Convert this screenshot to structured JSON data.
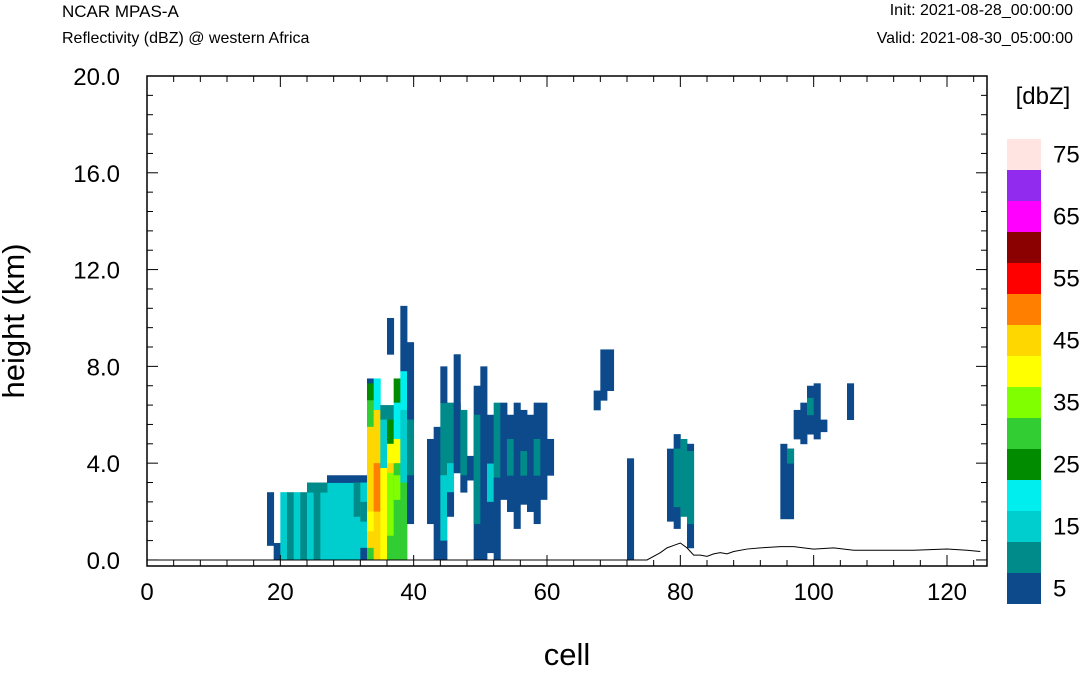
{
  "header": {
    "model": "NCAR MPAS-A",
    "field": "Reflectivity (dBZ) @ western Africa",
    "init": "Init: 2021-08-28_00:00:00",
    "valid": "Valid: 2021-08-30_05:00:00"
  },
  "colors": {
    "levels": [
      "#0d4a8c",
      "#008b8b",
      "#00cdcd",
      "#00eeee",
      "#008b00",
      "#32cd32",
      "#7fff00",
      "#ffff00",
      "#ffd700",
      "#ff7f00",
      "#ff0000",
      "#8b0000",
      "#ff00ff",
      "#912cee",
      "#ffe4e1"
    ]
  },
  "chart_data": {
    "type": "heatmap",
    "xlabel": "cell",
    "ylabel": "height (km)",
    "xlim": [
      0,
      126
    ],
    "ylim": [
      -0.25,
      20
    ],
    "xticks": [
      0,
      20,
      40,
      60,
      80,
      100,
      120
    ],
    "xtick_labels": [
      "0",
      "20",
      "40",
      "60",
      "80",
      "100",
      "120"
    ],
    "yticks": [
      0,
      4,
      8,
      12,
      16,
      20
    ],
    "ytick_labels": [
      "0.0",
      "4.0",
      "8.0",
      "12.0",
      "16.0",
      "20.0"
    ],
    "colorbar": {
      "title": "[dbZ]",
      "levels": [
        5,
        10,
        15,
        20,
        25,
        30,
        35,
        40,
        45,
        50,
        55,
        60,
        65,
        70,
        75
      ],
      "labels": [
        "5",
        "15",
        "25",
        "35",
        "45",
        "55",
        "65",
        "75"
      ]
    },
    "cells": [
      [
        18,
        19,
        0.6,
        2.8,
        5
      ],
      [
        19,
        20,
        0,
        0.7,
        5
      ],
      [
        20,
        21,
        0,
        2.8,
        15
      ],
      [
        21,
        22,
        0,
        2.8,
        10
      ],
      [
        22,
        23,
        0,
        2.8,
        15
      ],
      [
        23,
        24,
        0,
        2.8,
        10
      ],
      [
        24,
        25,
        0,
        3.0,
        15
      ],
      [
        25,
        26,
        0,
        2.8,
        10
      ],
      [
        26,
        27,
        0,
        3.0,
        15
      ],
      [
        27,
        28,
        0,
        3.2,
        15
      ],
      [
        28,
        29,
        0,
        3.2,
        15
      ],
      [
        29,
        30,
        0,
        3.2,
        15
      ],
      [
        30,
        31,
        0,
        3.2,
        15
      ],
      [
        31,
        32,
        0,
        3.2,
        15
      ],
      [
        24,
        27,
        2.8,
        3.2,
        10
      ],
      [
        27,
        33,
        3.2,
        3.5,
        5
      ],
      [
        31,
        32,
        1.8,
        3.2,
        10
      ],
      [
        32,
        33,
        0.5,
        3.2,
        15
      ],
      [
        32,
        33,
        1.6,
        2.4,
        10
      ],
      [
        32,
        33,
        0,
        0.5,
        5
      ],
      [
        33,
        34,
        5.0,
        7.5,
        5
      ],
      [
        33,
        34,
        6.6,
        7.3,
        25
      ],
      [
        33,
        34,
        5.5,
        6.6,
        30
      ],
      [
        33,
        34,
        3.5,
        5.5,
        45
      ],
      [
        33,
        34,
        0.5,
        3.5,
        45
      ],
      [
        33,
        34,
        1.2,
        2.0,
        40
      ],
      [
        33,
        34,
        0,
        0.5,
        30
      ],
      [
        34,
        35,
        6.2,
        7.5,
        20
      ],
      [
        34,
        35,
        4.0,
        6.2,
        45
      ],
      [
        34,
        35,
        2.0,
        4.0,
        50
      ],
      [
        34,
        35,
        0,
        2.0,
        45
      ],
      [
        35,
        36,
        5.8,
        6.4,
        10
      ],
      [
        35,
        36,
        3.8,
        5.8,
        15
      ],
      [
        35,
        36,
        0,
        3.8,
        40
      ],
      [
        36,
        37,
        5.8,
        6.4,
        10
      ],
      [
        36,
        37,
        4.8,
        5.8,
        25
      ],
      [
        36,
        37,
        4.0,
        4.8,
        40
      ],
      [
        36,
        37,
        3.6,
        4.0,
        45
      ],
      [
        36,
        37,
        0,
        3.6,
        35
      ],
      [
        36,
        37,
        0,
        1.0,
        30
      ],
      [
        37,
        38,
        6.5,
        7.5,
        25
      ],
      [
        37,
        38,
        5.0,
        6.5,
        20
      ],
      [
        37,
        38,
        4.0,
        5.0,
        40
      ],
      [
        37,
        38,
        0,
        4.0,
        30
      ],
      [
        37,
        38,
        2.5,
        3.5,
        35
      ],
      [
        38,
        39,
        7.8,
        10.5,
        5
      ],
      [
        38,
        39,
        6.2,
        7.8,
        20
      ],
      [
        38,
        39,
        3.2,
        6.2,
        15
      ],
      [
        38,
        39,
        0,
        3.2,
        30
      ],
      [
        39,
        40,
        5.8,
        9.0,
        5
      ],
      [
        39,
        40,
        3.5,
        5.8,
        10
      ],
      [
        39,
        40,
        1.5,
        3.5,
        5
      ],
      [
        36,
        37,
        8.5,
        10.0,
        5
      ],
      [
        42,
        43,
        1.5,
        5.0,
        5
      ],
      [
        43,
        44,
        0,
        1.5,
        5
      ],
      [
        43,
        44,
        1.5,
        5.5,
        5
      ],
      [
        44,
        45,
        3.5,
        6.5,
        10
      ],
      [
        44,
        45,
        0.8,
        3.5,
        15
      ],
      [
        44,
        45,
        0,
        0.8,
        5
      ],
      [
        44,
        45,
        6.5,
        8.0,
        5
      ],
      [
        45,
        46,
        4.0,
        6.5,
        10
      ],
      [
        45,
        46,
        2.8,
        4.0,
        15
      ],
      [
        45,
        46,
        1.8,
        2.8,
        5
      ],
      [
        46,
        47,
        3.6,
        6.5,
        5
      ],
      [
        46,
        47,
        6.2,
        8.5,
        5
      ],
      [
        47,
        48,
        3.5,
        6.2,
        10
      ],
      [
        47,
        48,
        2.8,
        3.5,
        5
      ],
      [
        48,
        49,
        3.3,
        4.3,
        5
      ],
      [
        49,
        50,
        0,
        7.2,
        5
      ],
      [
        49,
        50,
        1.5,
        6.0,
        10
      ],
      [
        50,
        51,
        4.0,
        8.0,
        5
      ],
      [
        50,
        51,
        2.0,
        4.0,
        5
      ],
      [
        50,
        51,
        0,
        2.0,
        5
      ],
      [
        51,
        52,
        2.4,
        4.0,
        15
      ],
      [
        51,
        52,
        0.3,
        2.4,
        5
      ],
      [
        51,
        52,
        4.0,
        6.0,
        5
      ],
      [
        52,
        53,
        3.4,
        6.5,
        10
      ],
      [
        52,
        53,
        0,
        3.4,
        5
      ],
      [
        53,
        54,
        2.5,
        6.5,
        5
      ],
      [
        54,
        55,
        2.0,
        6.0,
        5
      ],
      [
        54,
        55,
        3.5,
        5.0,
        10
      ],
      [
        55,
        56,
        1.3,
        6.5,
        5
      ],
      [
        56,
        57,
        2.3,
        6.2,
        5
      ],
      [
        56,
        57,
        3.5,
        4.5,
        10
      ],
      [
        57,
        58,
        2.0,
        6.0,
        5
      ],
      [
        58,
        59,
        1.5,
        6.5,
        5
      ],
      [
        58,
        59,
        3.5,
        5.0,
        10
      ],
      [
        59,
        60,
        2.5,
        6.5,
        5
      ],
      [
        60,
        61,
        3.5,
        5.0,
        5
      ],
      [
        67,
        68,
        6.2,
        7.0,
        5
      ],
      [
        68,
        69,
        6.6,
        8.7,
        5
      ],
      [
        69,
        70,
        7.0,
        8.7,
        5
      ],
      [
        72,
        73,
        0,
        4.2,
        5
      ],
      [
        78,
        79,
        1.6,
        4.6,
        5
      ],
      [
        79,
        80,
        1.3,
        5.2,
        5
      ],
      [
        79,
        80,
        2.2,
        4.6,
        10
      ],
      [
        80,
        81,
        1.8,
        5.0,
        10
      ],
      [
        81,
        82,
        0.5,
        4.8,
        5
      ],
      [
        81,
        82,
        1.5,
        4.5,
        10
      ],
      [
        95,
        96,
        1.7,
        4.8,
        5
      ],
      [
        96,
        97,
        1.7,
        4.6,
        5
      ],
      [
        96,
        97,
        4.0,
        4.6,
        10
      ],
      [
        97,
        98,
        5.0,
        6.2,
        5
      ],
      [
        98,
        99,
        4.8,
        6.5,
        5
      ],
      [
        99,
        100,
        5.2,
        7.2,
        5
      ],
      [
        99,
        100,
        6.0,
        6.7,
        10
      ],
      [
        100,
        101,
        5.0,
        7.3,
        5
      ],
      [
        101,
        102,
        5.3,
        5.8,
        5
      ],
      [
        105,
        106,
        5.8,
        7.3,
        5
      ]
    ],
    "terrain": [
      [
        0,
        0
      ],
      [
        75,
        0
      ],
      [
        77,
        0.3
      ],
      [
        78,
        0.5
      ],
      [
        79,
        0.6
      ],
      [
        80,
        0.7
      ],
      [
        81,
        0.5
      ],
      [
        82,
        0.2
      ],
      [
        83,
        0.2
      ],
      [
        84,
        0.15
      ],
      [
        85,
        0.25
      ],
      [
        86,
        0.3
      ],
      [
        87,
        0.25
      ],
      [
        88,
        0.35
      ],
      [
        90,
        0.45
      ],
      [
        92,
        0.5
      ],
      [
        95,
        0.55
      ],
      [
        97,
        0.55
      ],
      [
        100,
        0.45
      ],
      [
        103,
        0.5
      ],
      [
        106,
        0.4
      ],
      [
        110,
        0.4
      ],
      [
        115,
        0.4
      ],
      [
        120,
        0.45
      ],
      [
        123,
        0.4
      ],
      [
        125,
        0.35
      ]
    ]
  }
}
